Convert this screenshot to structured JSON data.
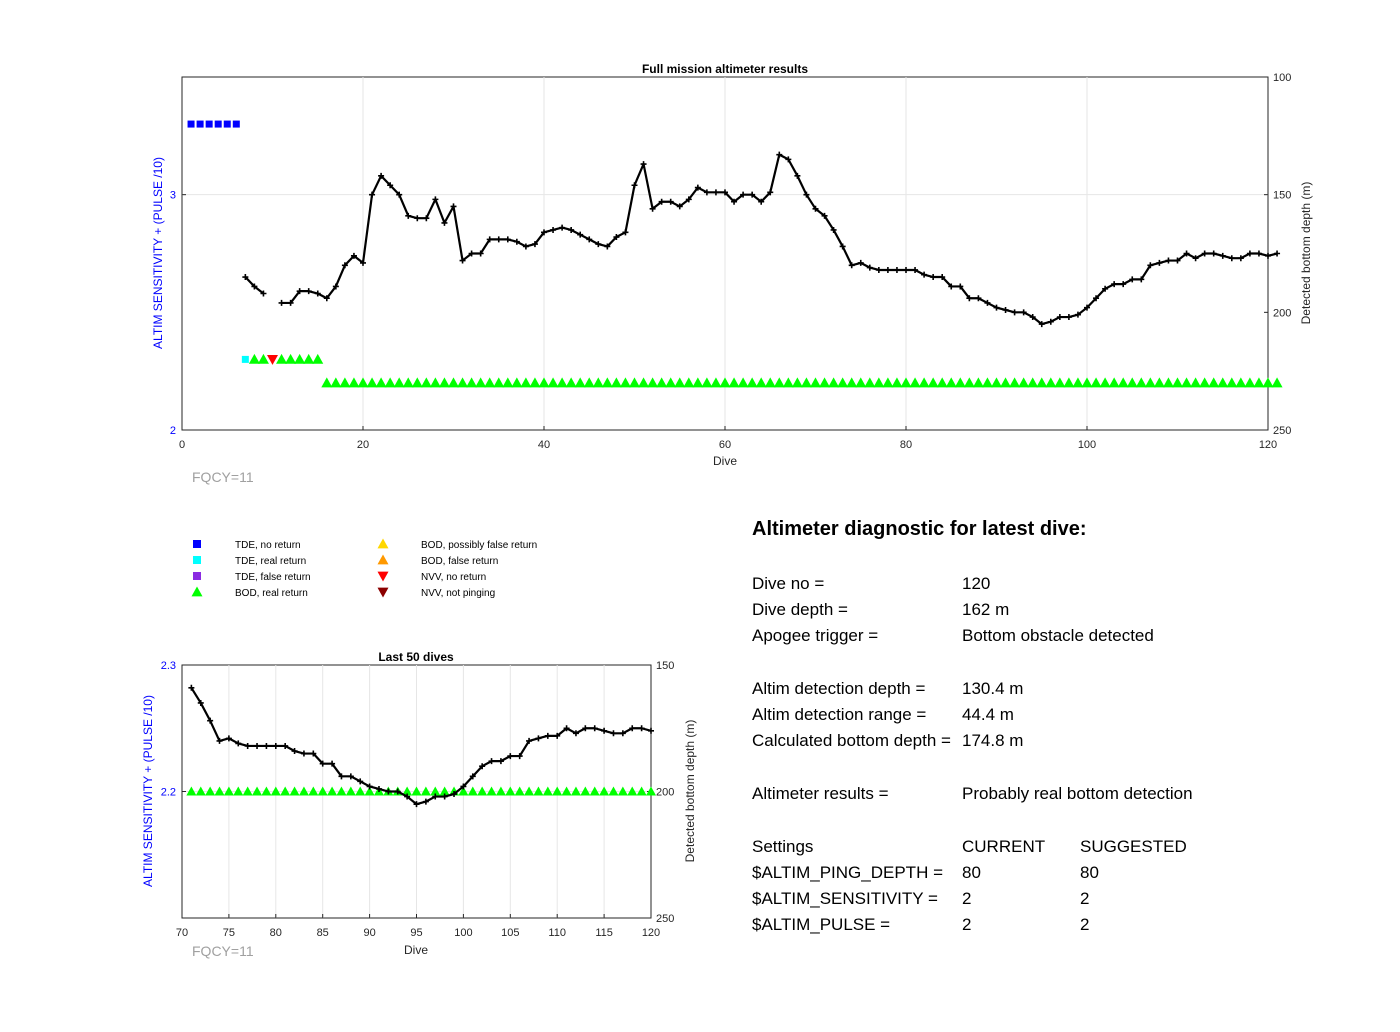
{
  "colors": {
    "tde_no_return": "#0000ff",
    "tde_real_return": "#00ffff",
    "tde_false_return": "#8b2be2",
    "bod_real_return": "#00ff00",
    "bod_possibly_false_return": "#ffd700",
    "bod_false_return": "#ff9900",
    "nvv_no_return": "#ff0000",
    "nvv_not_pinging": "#8b0000",
    "left_axis": "#0000ff",
    "depth_line": "#000000",
    "fqcy_text": "#a0a0a0"
  },
  "legend": {
    "items": [
      {
        "label": "TDE, no return",
        "marker": "square",
        "color": "#0000ff"
      },
      {
        "label": "TDE, real return",
        "marker": "square",
        "color": "#00ffff"
      },
      {
        "label": "TDE, false return",
        "marker": "square",
        "color": "#8b2be2"
      },
      {
        "label": "BOD, real return",
        "marker": "triangle-up",
        "color": "#00ff00"
      },
      {
        "label": "BOD, possibly false return",
        "marker": "triangle-up",
        "color": "#ffd700"
      },
      {
        "label": "BOD, false return",
        "marker": "triangle-up",
        "color": "#ff9900"
      },
      {
        "label": "NVV, no return",
        "marker": "triangle-down",
        "color": "#ff0000"
      },
      {
        "label": "NVV, not pinging",
        "marker": "triangle-down",
        "color": "#8b0000"
      }
    ]
  },
  "chart_data": [
    {
      "type": "line",
      "title": "Full mission altimeter results",
      "xlabel": "Dive",
      "ylabel_left": "ALTIM SENSITIVITY + (PULSE /10)",
      "ylabel_right": "Detected bottom depth (m)",
      "xlim": [
        0,
        120
      ],
      "ylim_left": [
        2,
        3.5
      ],
      "ylim_right": [
        100,
        250
      ],
      "right_axis_reversed": true,
      "grid": true,
      "xticks": [
        0,
        20,
        40,
        60,
        80,
        100,
        120
      ],
      "yticks_left": [
        2,
        3
      ],
      "yticks_right": [
        100,
        150,
        200,
        250
      ],
      "annotation": "FQCY=11",
      "depth_series": [
        {
          "x": 7,
          "y": 185
        },
        {
          "x": 8,
          "y": 189
        },
        {
          "x": 9,
          "y": 192
        },
        {
          "x": 11,
          "y": 196
        },
        {
          "x": 12,
          "y": 196
        },
        {
          "x": 13,
          "y": 191
        },
        {
          "x": 14,
          "y": 191
        },
        {
          "x": 15,
          "y": 192
        },
        {
          "x": 16,
          "y": 194
        },
        {
          "x": 17,
          "y": 189
        },
        {
          "x": 18,
          "y": 180
        },
        {
          "x": 19,
          "y": 176
        },
        {
          "x": 20,
          "y": 179
        },
        {
          "x": 21,
          "y": 150
        },
        {
          "x": 22,
          "y": 142
        },
        {
          "x": 23,
          "y": 146
        },
        {
          "x": 24,
          "y": 150
        },
        {
          "x": 25,
          "y": 159
        },
        {
          "x": 26,
          "y": 160
        },
        {
          "x": 27,
          "y": 160
        },
        {
          "x": 28,
          "y": 152
        },
        {
          "x": 29,
          "y": 162
        },
        {
          "x": 30,
          "y": 155
        },
        {
          "x": 31,
          "y": 178
        },
        {
          "x": 32,
          "y": 175
        },
        {
          "x": 33,
          "y": 175
        },
        {
          "x": 34,
          "y": 169
        },
        {
          "x": 35,
          "y": 169
        },
        {
          "x": 36,
          "y": 169
        },
        {
          "x": 37,
          "y": 170
        },
        {
          "x": 38,
          "y": 172
        },
        {
          "x": 39,
          "y": 171
        },
        {
          "x": 40,
          "y": 166
        },
        {
          "x": 41,
          "y": 165
        },
        {
          "x": 42,
          "y": 164
        },
        {
          "x": 43,
          "y": 165
        },
        {
          "x": 44,
          "y": 167
        },
        {
          "x": 45,
          "y": 169
        },
        {
          "x": 46,
          "y": 171
        },
        {
          "x": 47,
          "y": 172
        },
        {
          "x": 48,
          "y": 168
        },
        {
          "x": 49,
          "y": 166
        },
        {
          "x": 50,
          "y": 146
        },
        {
          "x": 51,
          "y": 137
        },
        {
          "x": 52,
          "y": 156
        },
        {
          "x": 53,
          "y": 153
        },
        {
          "x": 54,
          "y": 153
        },
        {
          "x": 55,
          "y": 155
        },
        {
          "x": 56,
          "y": 152
        },
        {
          "x": 57,
          "y": 147
        },
        {
          "x": 58,
          "y": 149
        },
        {
          "x": 59,
          "y": 149
        },
        {
          "x": 60,
          "y": 149
        },
        {
          "x": 61,
          "y": 153
        },
        {
          "x": 62,
          "y": 150
        },
        {
          "x": 63,
          "y": 150
        },
        {
          "x": 64,
          "y": 153
        },
        {
          "x": 65,
          "y": 149
        },
        {
          "x": 66,
          "y": 133
        },
        {
          "x": 67,
          "y": 135
        },
        {
          "x": 68,
          "y": 142
        },
        {
          "x": 69,
          "y": 150
        },
        {
          "x": 70,
          "y": 156
        },
        {
          "x": 71,
          "y": 159
        },
        {
          "x": 72,
          "y": 165
        },
        {
          "x": 73,
          "y": 172
        },
        {
          "x": 74,
          "y": 180
        },
        {
          "x": 75,
          "y": 179
        },
        {
          "x": 76,
          "y": 181
        },
        {
          "x": 77,
          "y": 182
        },
        {
          "x": 78,
          "y": 182
        },
        {
          "x": 79,
          "y": 182
        },
        {
          "x": 80,
          "y": 182
        },
        {
          "x": 81,
          "y": 182
        },
        {
          "x": 82,
          "y": 184
        },
        {
          "x": 83,
          "y": 185
        },
        {
          "x": 84,
          "y": 185
        },
        {
          "x": 85,
          "y": 189
        },
        {
          "x": 86,
          "y": 189
        },
        {
          "x": 87,
          "y": 194
        },
        {
          "x": 88,
          "y": 194
        },
        {
          "x": 89,
          "y": 196
        },
        {
          "x": 90,
          "y": 198
        },
        {
          "x": 91,
          "y": 199
        },
        {
          "x": 92,
          "y": 200
        },
        {
          "x": 93,
          "y": 200
        },
        {
          "x": 94,
          "y": 202
        },
        {
          "x": 95,
          "y": 205
        },
        {
          "x": 96,
          "y": 204
        },
        {
          "x": 97,
          "y": 202
        },
        {
          "x": 98,
          "y": 202
        },
        {
          "x": 99,
          "y": 201
        },
        {
          "x": 100,
          "y": 198
        },
        {
          "x": 101,
          "y": 194
        },
        {
          "x": 102,
          "y": 190
        },
        {
          "x": 103,
          "y": 188
        },
        {
          "x": 104,
          "y": 188
        },
        {
          "x": 105,
          "y": 186
        },
        {
          "x": 106,
          "y": 186
        },
        {
          "x": 107,
          "y": 180
        },
        {
          "x": 108,
          "y": 179
        },
        {
          "x": 109,
          "y": 178
        },
        {
          "x": 110,
          "y": 178
        },
        {
          "x": 111,
          "y": 175
        },
        {
          "x": 112,
          "y": 177
        },
        {
          "x": 113,
          "y": 175
        },
        {
          "x": 114,
          "y": 175
        },
        {
          "x": 115,
          "y": 176
        },
        {
          "x": 116,
          "y": 177
        },
        {
          "x": 117,
          "y": 177
        },
        {
          "x": 118,
          "y": 175
        },
        {
          "x": 119,
          "y": 175
        },
        {
          "x": 120,
          "y": 176
        },
        {
          "x": 121,
          "y": 175
        }
      ],
      "markers": {
        "tde_no_return": {
          "y": 3.3,
          "x": [
            1,
            2,
            3,
            4,
            5,
            6
          ]
        },
        "tde_real_return": {
          "y": 2.3,
          "x": [
            7
          ]
        },
        "bod_real_return_a": {
          "y": 2.3,
          "x": [
            8,
            9,
            11,
            12,
            13,
            14,
            15
          ]
        },
        "nvv_no_return": {
          "y": 2.3,
          "x": [
            10
          ]
        },
        "bod_real_return_b": {
          "y": 2.2,
          "x_from": 16,
          "x_to": 121
        }
      }
    },
    {
      "type": "line",
      "title": "Last 50 dives",
      "xlabel": "Dive",
      "ylabel_left": "ALTIM SENSITIVITY + (PULSE /10)",
      "ylabel_right": "Detected bottom depth (m)",
      "xlim": [
        70,
        120
      ],
      "ylim_left": [
        2.1,
        2.3
      ],
      "ylim_right": [
        150,
        250
      ],
      "right_axis_reversed": true,
      "grid": true,
      "xticks": [
        70,
        75,
        80,
        85,
        90,
        95,
        100,
        105,
        110,
        115,
        120
      ],
      "yticks_left": [
        2.2,
        2.3
      ],
      "yticks_right": [
        150,
        200,
        250
      ],
      "annotation": "FQCY=11",
      "markers": {
        "bod_real_return": {
          "y": 2.2,
          "x_from": 71,
          "x_to": 120
        }
      }
    }
  ],
  "diagnostic": {
    "heading": "Altimeter diagnostic for latest dive:",
    "rows": [
      {
        "label": "Dive no =",
        "value": "120"
      },
      {
        "label": "Dive depth =",
        "value": "162 m"
      },
      {
        "label": "Apogee trigger =",
        "value": "Bottom obstacle detected"
      },
      {
        "label": "Altim detection depth =",
        "value": "130.4 m"
      },
      {
        "label": "Altim detection range =",
        "value": "44.4 m"
      },
      {
        "label": "Calculated bottom depth =",
        "value": "174.8 m"
      },
      {
        "label": "Altimeter results =",
        "value": "Probably real bottom detection"
      }
    ],
    "settings_header": {
      "label": "Settings",
      "current": "CURRENT",
      "suggested": "SUGGESTED"
    },
    "settings": [
      {
        "label": "$ALTIM_PING_DEPTH =",
        "current": "80",
        "suggested": "80"
      },
      {
        "label": "$ALTIM_SENSITIVITY =",
        "current": "2",
        "suggested": "2"
      },
      {
        "label": "$ALTIM_PULSE =",
        "current": "2",
        "suggested": "2"
      }
    ]
  }
}
